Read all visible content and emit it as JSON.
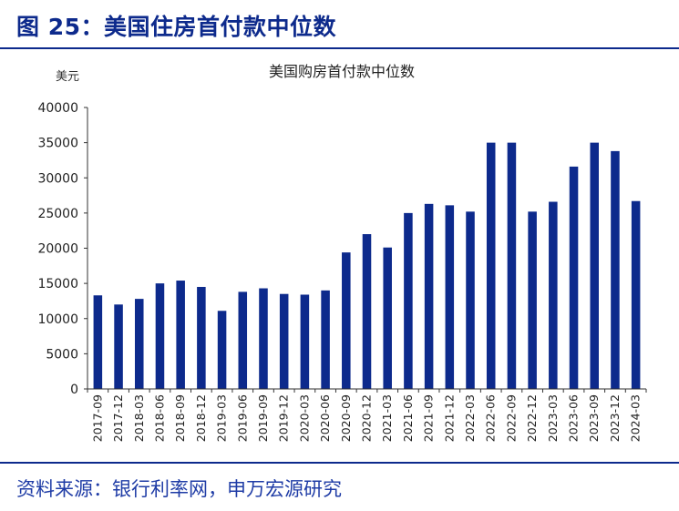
{
  "figure_title": "图 25：美国住房首付款中位数",
  "source": "资料来源：银行利率网，申万宏源研究",
  "colors": {
    "bar": "#0d2a8c",
    "title": "#0d2a8c",
    "axis": "#333333"
  },
  "chart_data": {
    "type": "bar",
    "title": "美国购房首付款中位数",
    "ylabel": "美元",
    "xlabel": "",
    "ylim": [
      0,
      40000
    ],
    "yticks": [
      "0",
      "5000",
      "10000",
      "15000",
      "20000",
      "25000",
      "30000",
      "35000",
      "40000"
    ],
    "categories": [
      "2017-09",
      "2017-12",
      "2018-03",
      "2018-06",
      "2018-09",
      "2018-12",
      "2019-03",
      "2019-06",
      "2019-09",
      "2019-12",
      "2020-03",
      "2020-06",
      "2020-09",
      "2020-12",
      "2021-03",
      "2021-06",
      "2021-09",
      "2021-12",
      "2022-03",
      "2022-06",
      "2022-09",
      "2022-12",
      "2023-03",
      "2023-06",
      "2023-09",
      "2023-12",
      "2024-03"
    ],
    "values": [
      13300,
      12000,
      12800,
      15000,
      15400,
      14500,
      11100,
      13800,
      14300,
      13500,
      13400,
      14000,
      19400,
      22000,
      20100,
      25000,
      26300,
      26100,
      25200,
      35000,
      35000,
      25200,
      26600,
      31600,
      35000,
      33800,
      26700
    ]
  }
}
